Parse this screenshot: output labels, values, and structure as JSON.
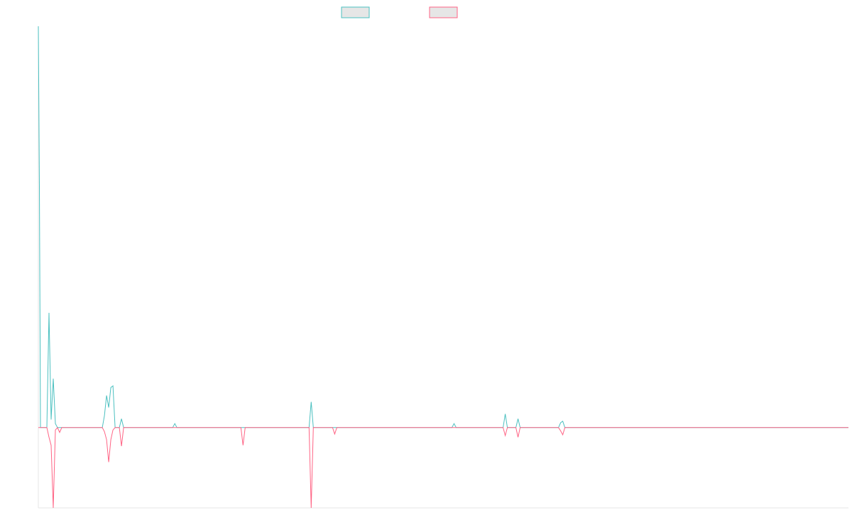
{
  "colors": {
    "background": "#ffffff",
    "axis": "#e6e6e6",
    "legend_fill": "#e6e6e6"
  },
  "chart_data": {
    "type": "line",
    "title": "",
    "xlabel": "",
    "ylabel": "",
    "grid": false,
    "legend_position": "top-center",
    "xlim": [
      0,
      380
    ],
    "ylim": [
      -100,
      500
    ],
    "series": [
      {
        "color": "#4bc0c0",
        "points": [
          [
            0,
            500
          ],
          [
            0.5,
            300
          ],
          [
            1,
            0
          ],
          [
            4,
            0
          ],
          [
            5,
            143
          ],
          [
            6,
            10
          ],
          [
            7,
            61
          ],
          [
            8,
            5
          ],
          [
            9,
            0
          ],
          [
            21,
            0
          ],
          [
            22,
            0
          ],
          [
            25,
            0
          ],
          [
            26,
            0
          ],
          [
            27,
            0
          ],
          [
            30,
            0
          ],
          [
            31,
            15
          ],
          [
            32,
            40
          ],
          [
            33,
            25
          ],
          [
            34,
            50
          ],
          [
            35,
            52
          ],
          [
            36,
            0
          ],
          [
            38,
            0
          ],
          [
            39,
            11
          ],
          [
            40,
            0
          ],
          [
            63,
            0
          ],
          [
            64,
            5
          ],
          [
            65,
            0
          ],
          [
            78,
            0
          ],
          [
            95,
            0
          ],
          [
            102,
            0
          ],
          [
            103,
            0
          ],
          [
            104,
            0
          ],
          [
            127,
            0
          ],
          [
            128,
            32
          ],
          [
            129,
            0
          ],
          [
            138,
            0
          ],
          [
            155,
            0
          ],
          [
            157,
            0
          ],
          [
            158,
            0
          ],
          [
            173,
            0
          ],
          [
            175,
            0
          ],
          [
            176,
            0
          ],
          [
            194,
            0
          ],
          [
            195,
            5
          ],
          [
            196,
            0
          ],
          [
            218,
            0
          ],
          [
            219,
            17
          ],
          [
            220,
            0
          ],
          [
            224,
            0
          ],
          [
            225,
            11
          ],
          [
            226,
            0
          ],
          [
            228,
            0
          ],
          [
            229,
            0
          ],
          [
            230,
            0
          ],
          [
            244,
            0
          ],
          [
            245,
            6
          ],
          [
            246,
            8
          ],
          [
            247,
            0
          ],
          [
            380,
            0
          ]
        ]
      },
      {
        "color": "#ff6384",
        "points": [
          [
            0,
            0
          ],
          [
            4,
            0
          ],
          [
            5,
            -12
          ],
          [
            6,
            -22
          ],
          [
            7,
            -100
          ],
          [
            8,
            -3
          ],
          [
            9,
            0
          ],
          [
            10,
            -6
          ],
          [
            11,
            0
          ],
          [
            21,
            0
          ],
          [
            22,
            0
          ],
          [
            25,
            0
          ],
          [
            26,
            0
          ],
          [
            27,
            0
          ],
          [
            30,
            0
          ],
          [
            31,
            -5
          ],
          [
            32,
            -15
          ],
          [
            33,
            -43
          ],
          [
            34,
            -15
          ],
          [
            35,
            -3
          ],
          [
            36,
            0
          ],
          [
            38,
            0
          ],
          [
            39,
            -23
          ],
          [
            40,
            0
          ],
          [
            63,
            0
          ],
          [
            64,
            0
          ],
          [
            65,
            0
          ],
          [
            78,
            0
          ],
          [
            79,
            0
          ],
          [
            95,
            0
          ],
          [
            96,
            -22
          ],
          [
            97,
            0
          ],
          [
            102,
            0
          ],
          [
            103,
            0
          ],
          [
            104,
            0
          ],
          [
            127,
            0
          ],
          [
            128,
            -100
          ],
          [
            129,
            0
          ],
          [
            138,
            0
          ],
          [
            139,
            -8
          ],
          [
            140,
            0
          ],
          [
            155,
            0
          ],
          [
            157,
            0
          ],
          [
            158,
            0
          ],
          [
            173,
            0
          ],
          [
            175,
            0
          ],
          [
            176,
            0
          ],
          [
            194,
            0
          ],
          [
            195,
            0
          ],
          [
            196,
            0
          ],
          [
            218,
            0
          ],
          [
            219,
            -10
          ],
          [
            220,
            0
          ],
          [
            224,
            0
          ],
          [
            225,
            -12
          ],
          [
            226,
            0
          ],
          [
            228,
            0
          ],
          [
            229,
            0
          ],
          [
            230,
            0
          ],
          [
            244,
            0
          ],
          [
            245,
            -4
          ],
          [
            246,
            -9
          ],
          [
            247,
            0
          ],
          [
            380,
            0
          ]
        ]
      }
    ]
  }
}
